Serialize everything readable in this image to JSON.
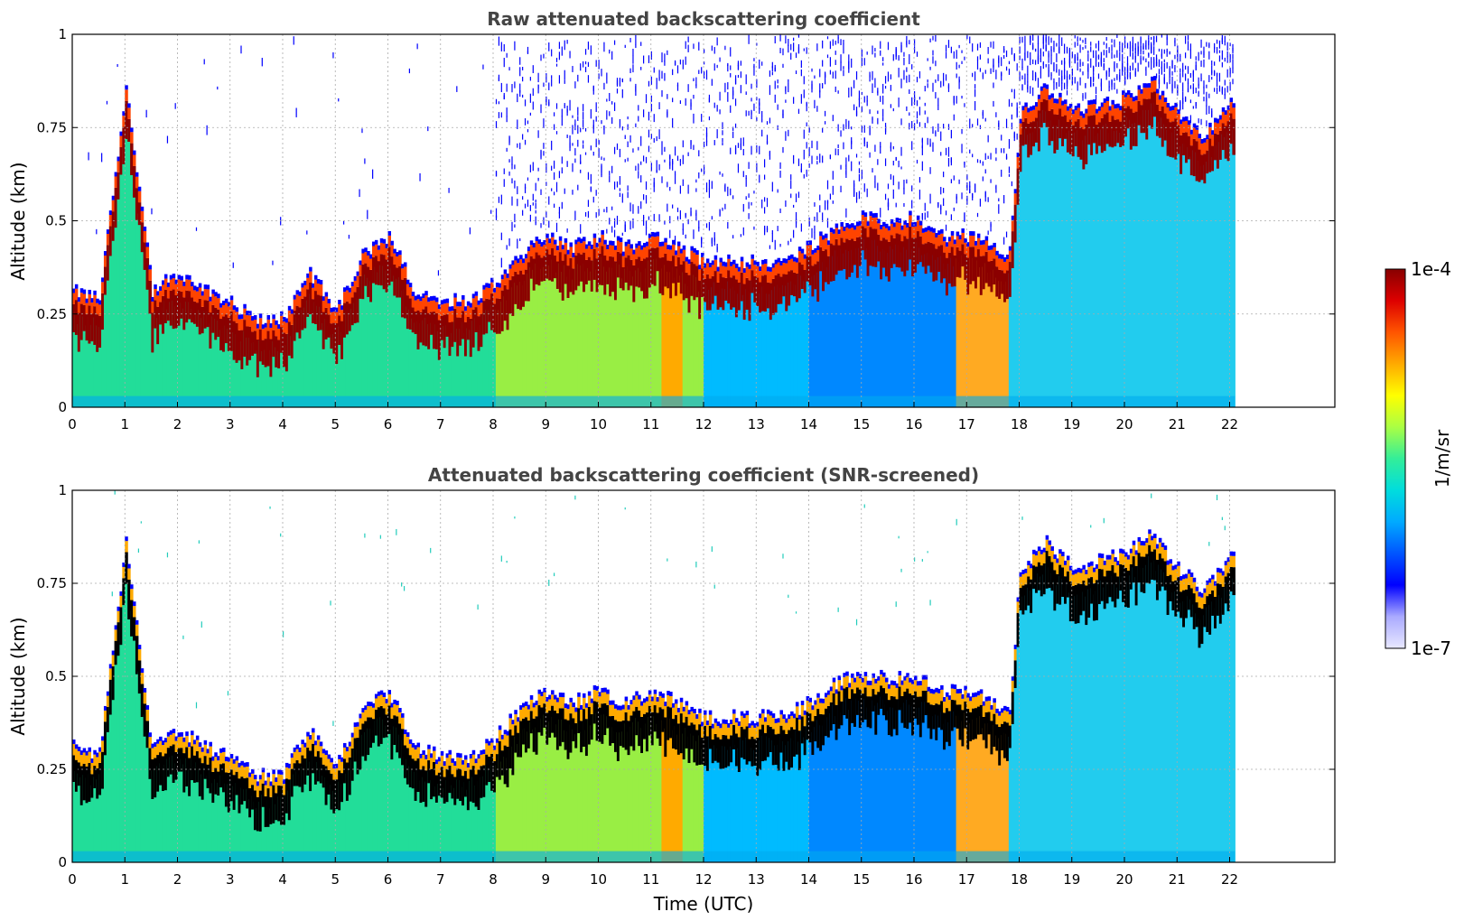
{
  "chart_data": [
    {
      "type": "heatmap",
      "title": "Raw attenuated backscattering coefficient",
      "xlabel": "",
      "ylabel": "Altitude (km)",
      "xlim": [
        0,
        24
      ],
      "ylim": [
        0,
        1
      ],
      "xticks": [
        "0",
        "1",
        "2",
        "3",
        "4",
        "5",
        "6",
        "7",
        "8",
        "9",
        "10",
        "11",
        "12",
        "13",
        "14",
        "15",
        "16",
        "17",
        "18",
        "19",
        "20",
        "21",
        "22"
      ],
      "yticks": [
        "0",
        "0.25",
        "0.5",
        "0.75",
        "1"
      ],
      "data_end_hour": 22.1,
      "grid": true,
      "screened": false,
      "layer_top_km": [
        [
          0,
          0.3
        ],
        [
          0.5,
          0.28
        ],
        [
          1,
          0.85
        ],
        [
          1.5,
          0.3
        ],
        [
          2,
          0.35
        ],
        [
          2.5,
          0.3
        ],
        [
          3,
          0.27
        ],
        [
          3.5,
          0.22
        ],
        [
          4,
          0.23
        ],
        [
          4.5,
          0.35
        ],
        [
          5,
          0.25
        ],
        [
          5.5,
          0.4
        ],
        [
          6,
          0.45
        ],
        [
          6.5,
          0.3
        ],
        [
          7,
          0.28
        ],
        [
          7.5,
          0.27
        ],
        [
          8,
          0.32
        ],
        [
          8.5,
          0.4
        ],
        [
          9,
          0.45
        ],
        [
          9.5,
          0.42
        ],
        [
          10,
          0.45
        ],
        [
          10.5,
          0.42
        ],
        [
          11,
          0.45
        ],
        [
          11.5,
          0.42
        ],
        [
          12,
          0.38
        ],
        [
          12.5,
          0.38
        ],
        [
          13,
          0.38
        ],
        [
          13.5,
          0.38
        ],
        [
          14,
          0.42
        ],
        [
          14.5,
          0.47
        ],
        [
          15,
          0.5
        ],
        [
          15.5,
          0.48
        ],
        [
          16,
          0.5
        ],
        [
          16.5,
          0.45
        ],
        [
          17,
          0.45
        ],
        [
          17.5,
          0.42
        ],
        [
          17.8,
          0.4
        ],
        [
          18,
          0.78
        ],
        [
          18.5,
          0.85
        ],
        [
          19,
          0.78
        ],
        [
          19.5,
          0.8
        ],
        [
          20,
          0.82
        ],
        [
          20.5,
          0.87
        ],
        [
          21,
          0.78
        ],
        [
          21.5,
          0.72
        ],
        [
          22,
          0.82
        ]
      ]
    },
    {
      "type": "heatmap",
      "title": "Attenuated backscattering coefficient (SNR-screened)",
      "xlabel": "Time (UTC)",
      "ylabel": "Altitude (km)",
      "xlim": [
        0,
        24
      ],
      "ylim": [
        0,
        1
      ],
      "xticks": [
        "0",
        "1",
        "2",
        "3",
        "4",
        "5",
        "6",
        "7",
        "8",
        "9",
        "10",
        "11",
        "12",
        "13",
        "14",
        "15",
        "16",
        "17",
        "18",
        "19",
        "20",
        "21",
        "22"
      ],
      "yticks": [
        "0",
        "0.25",
        "0.5",
        "0.75",
        "1"
      ],
      "data_end_hour": 22.1,
      "grid": true,
      "screened": true
    }
  ],
  "colorbar": {
    "label": "1/m/sr",
    "max_label": "1e-4",
    "min_label": "1e-7",
    "colors": [
      "#e8e8ff",
      "#aaaaff",
      "#0000ff",
      "#0055ff",
      "#00aaff",
      "#00dddd",
      "#33ee99",
      "#aaff44",
      "#ffff00",
      "#ffaa00",
      "#ff5500",
      "#dd0000",
      "#880000"
    ]
  }
}
